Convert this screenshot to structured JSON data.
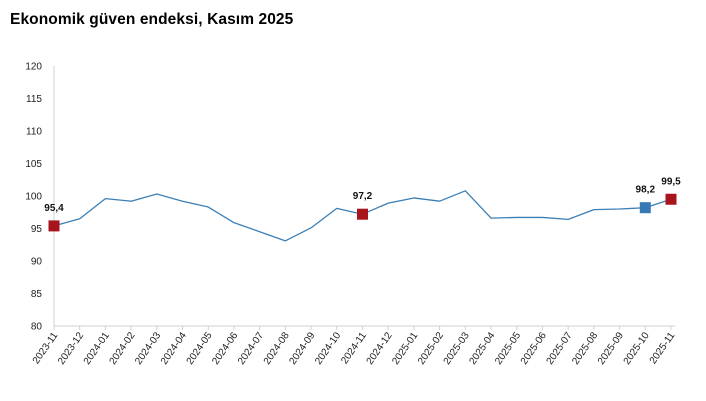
{
  "title": "Ekonomik güven endeksi, Kasım 2025",
  "chart_data": {
    "type": "line",
    "categories": [
      "2023-11",
      "2023-12",
      "2024-01",
      "2024-02",
      "2024-03",
      "2024-04",
      "2024-05",
      "2024-06",
      "2024-07",
      "2024-08",
      "2024-09",
      "2024-10",
      "2024-11",
      "2024-12",
      "2025-01",
      "2025-02",
      "2025-03",
      "2025-04",
      "2025-05",
      "2025-06",
      "2025-07",
      "2025-08",
      "2025-09",
      "2025-10",
      "2025-11"
    ],
    "series": [
      {
        "values": [
          95.4,
          96.5,
          99.6,
          99.2,
          100.3,
          99.2,
          98.3,
          95.9,
          94.5,
          93.1,
          95.1,
          98.1,
          97.2,
          98.9,
          99.7,
          99.2,
          100.8,
          96.6,
          96.7,
          96.7,
          96.4,
          97.9,
          98.0,
          98.2,
          99.5
        ],
        "color": "#3b7fb6"
      }
    ],
    "yticks": [
      "80",
      "85",
      "90",
      "95",
      "100",
      "105",
      "110",
      "115",
      "120"
    ],
    "ylim": [
      80,
      120
    ],
    "grid": false,
    "markers": [
      {
        "index": 0,
        "label": "95,4",
        "color": "#a8141c"
      },
      {
        "index": 12,
        "label": "97,2",
        "color": "#a8141c"
      },
      {
        "index": 23,
        "label": "98,2",
        "color": "#3679b5"
      },
      {
        "index": 24,
        "label": "99,5",
        "color": "#a8141c"
      }
    ]
  }
}
